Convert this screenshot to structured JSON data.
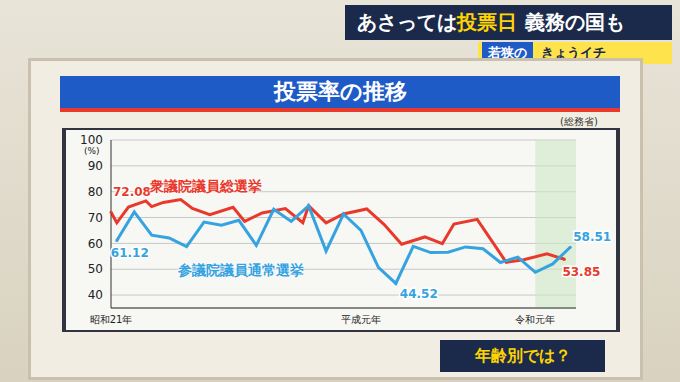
{
  "header": {
    "title_parts": [
      "あさっては",
      "投票日",
      "義務の国も"
    ],
    "program": [
      "若狭の",
      "きょうイチ"
    ]
  },
  "chart_data": {
    "type": "line",
    "title": "投票率の推移",
    "source": "(総務省)",
    "y_label": "(%)",
    "xlim": [
      1946,
      2026
    ],
    "xticks": [
      {
        "value": 1946,
        "label": "昭和21年"
      },
      {
        "value": 1989,
        "label": "平成元年"
      },
      {
        "value": 2019,
        "label": "令和元年"
      }
    ],
    "ylim": [
      35,
      100
    ],
    "yticks": [
      40,
      50,
      60,
      70,
      80,
      90,
      100
    ],
    "grid": true,
    "shaded_range": [
      2019,
      2026
    ],
    "series": [
      {
        "name": "衆議院議員総選挙",
        "color": "#e8392b",
        "x": [
          1946,
          1947,
          1949,
          1952,
          1953,
          1955,
          1958,
          1960,
          1963,
          1967,
          1969,
          1972,
          1976,
          1979,
          1980,
          1983,
          1986,
          1990,
          1993,
          1996,
          2000,
          2003,
          2005,
          2009,
          2012,
          2014,
          2017,
          2021,
          2024
        ],
        "values": [
          72.08,
          67.95,
          74.04,
          76.43,
          74.22,
          75.84,
          76.99,
          73.51,
          71.14,
          73.99,
          68.51,
          71.76,
          73.45,
          68.01,
          74.57,
          67.94,
          71.4,
          73.31,
          67.26,
          59.65,
          62.49,
          59.86,
          67.51,
          69.28,
          59.32,
          52.66,
          53.68,
          55.93,
          53.85
        ]
      },
      {
        "name": "参議院議員通常選挙",
        "color": "#35a3e0",
        "x": [
          1947,
          1950,
          1953,
          1956,
          1959,
          1962,
          1965,
          1968,
          1971,
          1974,
          1977,
          1980,
          1983,
          1986,
          1989,
          1992,
          1995,
          1998,
          2001,
          2004,
          2007,
          2010,
          2013,
          2016,
          2019,
          2022,
          2025
        ],
        "values": [
          61.12,
          72.19,
          63.18,
          62.11,
          58.75,
          68.22,
          67.02,
          68.94,
          59.24,
          73.2,
          68.49,
          74.54,
          57.0,
          71.36,
          65.02,
          50.72,
          44.52,
          58.84,
          56.44,
          56.57,
          58.64,
          57.92,
          52.61,
          54.7,
          48.8,
          52.05,
          58.51
        ]
      }
    ],
    "annotations": [
      {
        "series": 0,
        "x": 1946,
        "value": 72.08
      },
      {
        "series": 1,
        "x": 1947,
        "value": 61.12
      },
      {
        "series": 1,
        "x": 1995,
        "value": 44.52
      },
      {
        "series": 1,
        "x": 2025,
        "value": 58.51
      },
      {
        "series": 0,
        "x": 2024,
        "value": 53.85
      }
    ]
  },
  "footer": {
    "button": "年齢別では？"
  }
}
